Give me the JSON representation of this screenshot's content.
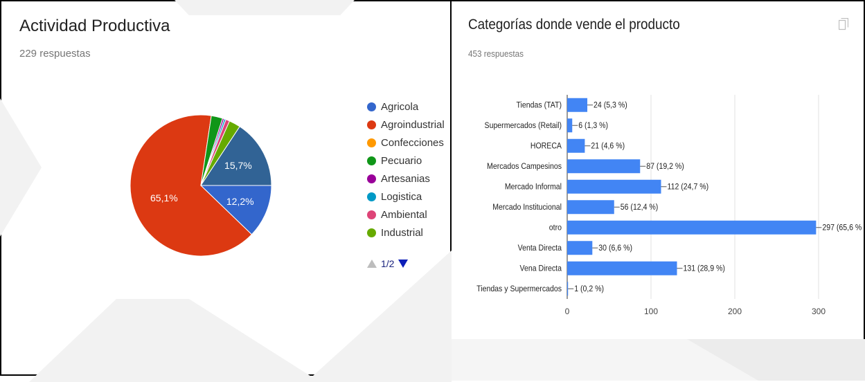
{
  "left": {
    "title": "Actividad Productiva",
    "subtitle": "229 respuestas",
    "pager": {
      "text": "1/2"
    }
  },
  "right": {
    "title": "Categorías donde vende el producto",
    "subtitle": "453 respuestas"
  },
  "chart_data": [
    {
      "type": "pie",
      "title": "Actividad Productiva",
      "categories": [
        "Agricola",
        "Agroindustrial",
        "Confecciones",
        "Pecuario",
        "Artesanias",
        "Logistica",
        "Ambiental",
        "Industrial"
      ],
      "legend_position": "right",
      "slices": [
        {
          "label": "Agricola",
          "value": 12.2,
          "color": "#3366cc",
          "text": "12,2%"
        },
        {
          "label": "Agroindustrial",
          "value": 65.1,
          "color": "#dc3912",
          "text": "65,1%"
        },
        {
          "label": "Pecuario",
          "value": 2.6,
          "color": "#109618",
          "text": ""
        },
        {
          "label": "Artesanias",
          "value": 0.4,
          "color": "#990099",
          "text": ""
        },
        {
          "label": "Logistica",
          "value": 0.4,
          "color": "#0099c6",
          "text": ""
        },
        {
          "label": "Ambiental",
          "value": 0.9,
          "color": "#dd4477",
          "text": ""
        },
        {
          "label": "Industrial",
          "value": 2.6,
          "color": "#66aa00",
          "text": ""
        },
        {
          "label": "",
          "value": 15.7,
          "color": "#316395",
          "text": "15,7%"
        }
      ],
      "legend": [
        {
          "label": "Agricola",
          "color": "#3366cc"
        },
        {
          "label": "Agroindustrial",
          "color": "#dc3912"
        },
        {
          "label": "Confecciones",
          "color": "#ff9900"
        },
        {
          "label": "Pecuario",
          "color": "#109618"
        },
        {
          "label": "Artesanias",
          "color": "#990099"
        },
        {
          "label": "Logistica",
          "color": "#0099c6"
        },
        {
          "label": "Ambiental",
          "color": "#dd4477"
        },
        {
          "label": "Industrial",
          "color": "#66aa00"
        }
      ]
    },
    {
      "type": "bar",
      "orientation": "horizontal",
      "title": "Categorías donde vende el producto",
      "categories": [
        "Tiendas (TAT)",
        "Supermercados (Retail)",
        "HORECA",
        "Mercados Campesinos",
        "Mercado Informal",
        "Mercado Institucional",
        "otro",
        "Venta Directa",
        "Vena Directa",
        "Tiendas y Supermercados"
      ],
      "values": [
        24,
        6,
        21,
        87,
        112,
        56,
        297,
        30,
        131,
        1
      ],
      "value_labels": [
        "24 (5,3 %)",
        "6 (1,3 %)",
        "21 (4,6 %)",
        "87 (19,2 %)",
        "112 (24,7 %)",
        "56 (12,4 %)",
        "297 (65,6 %",
        "30 (6,6 %)",
        "131 (28,9 %)",
        "1 (0,2 %)"
      ],
      "xlim": [
        0,
        300
      ],
      "xticks": [
        "0",
        "100",
        "200",
        "300"
      ],
      "grid": true,
      "bar_color": "#4285f4"
    }
  ]
}
